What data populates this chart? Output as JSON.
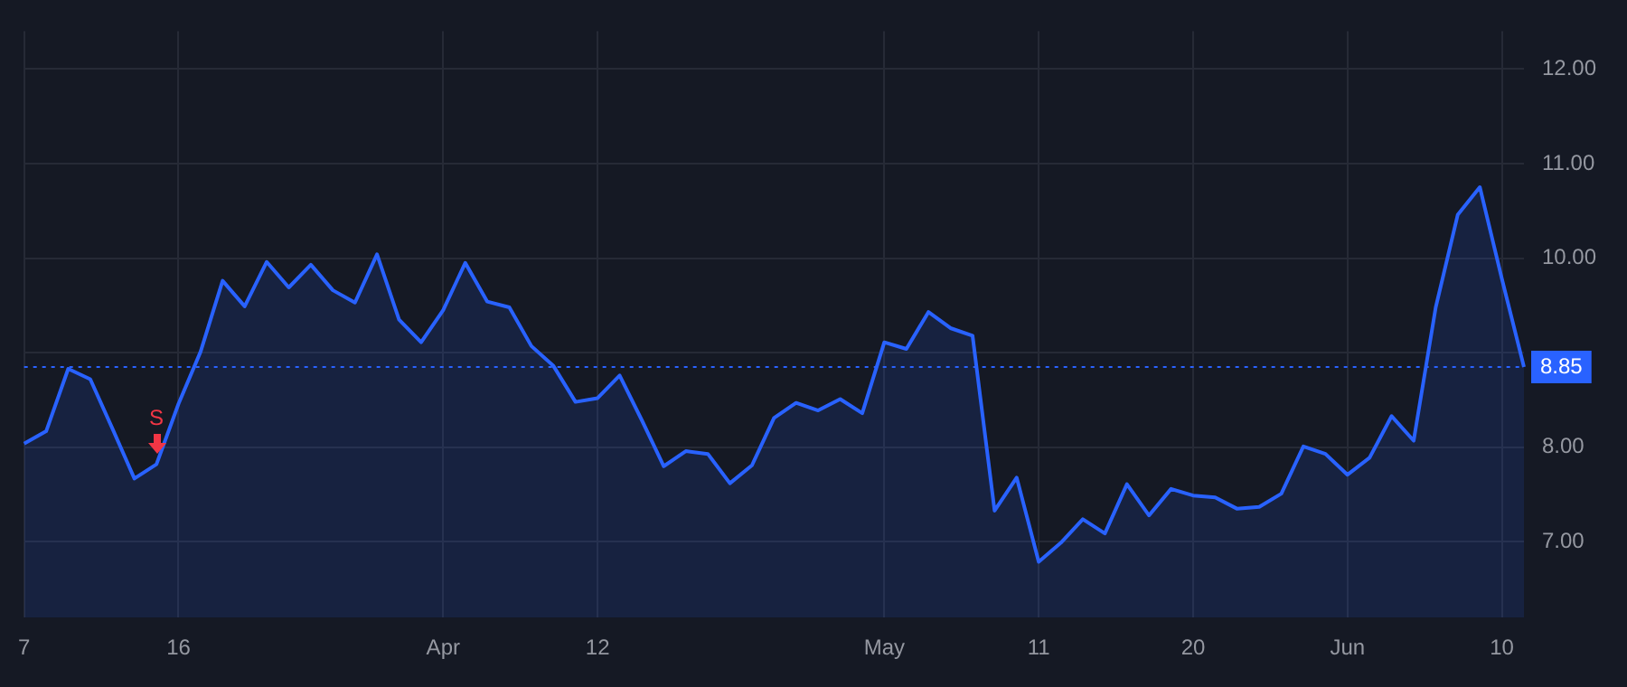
{
  "chart_data": {
    "type": "area",
    "categories": [
      "7",
      null,
      null,
      null,
      null,
      null,
      null,
      "16",
      null,
      null,
      null,
      null,
      null,
      null,
      null,
      null,
      null,
      null,
      null,
      "Apr",
      null,
      null,
      null,
      null,
      null,
      null,
      "12",
      null,
      null,
      null,
      null,
      null,
      null,
      null,
      null,
      null,
      null,
      null,
      null,
      "May",
      null,
      null,
      null,
      null,
      null,
      null,
      "11",
      null,
      null,
      null,
      null,
      null,
      null,
      "20",
      null,
      null,
      null,
      null,
      null,
      null,
      "Jun",
      null,
      null,
      null,
      null,
      null,
      null,
      "10",
      null
    ],
    "series": [
      {
        "color": "#2962ff",
        "values": [
          8.04,
          8.17,
          8.83,
          8.72,
          8.2,
          7.67,
          7.82,
          8.46,
          9.01,
          9.76,
          9.49,
          9.96,
          9.69,
          9.93,
          9.66,
          9.53,
          10.04,
          9.35,
          9.11,
          9.45,
          9.95,
          9.54,
          9.48,
          9.07,
          8.86,
          8.48,
          8.52,
          8.76,
          8.29,
          7.8,
          7.96,
          7.93,
          7.62,
          7.81,
          8.31,
          8.47,
          8.39,
          8.51,
          8.36,
          9.11,
          9.04,
          9.43,
          9.26,
          9.18,
          7.33,
          7.68,
          6.79,
          6.99,
          7.24,
          7.09,
          7.61,
          7.28,
          7.56,
          7.49,
          7.47,
          7.35,
          7.37,
          7.51,
          8.01,
          7.93,
          7.71,
          7.89,
          8.33,
          8.07,
          9.48,
          10.46,
          10.75,
          9.78,
          8.85
        ]
      }
    ],
    "ylim": [
      6.2,
      12.4
    ],
    "yticks": [
      {
        "value": 7,
        "label": "7.00"
      },
      {
        "value": 8,
        "label": "8.00"
      },
      {
        "value": 9,
        "label": null
      },
      {
        "value": 10,
        "label": "10.00"
      },
      {
        "value": 11,
        "label": "11.00"
      },
      {
        "value": 12,
        "label": "12.00"
      }
    ],
    "ref_lines": [
      {
        "axis": "y",
        "value": 8.85,
        "label": "8.85",
        "color": "#2962ff",
        "line_style": "dotted"
      }
    ],
    "annotations": [
      {
        "text": "S",
        "y": 7.82
      }
    ],
    "grid": true,
    "legend": false,
    "marker": "none",
    "line_style": "solid"
  }
}
